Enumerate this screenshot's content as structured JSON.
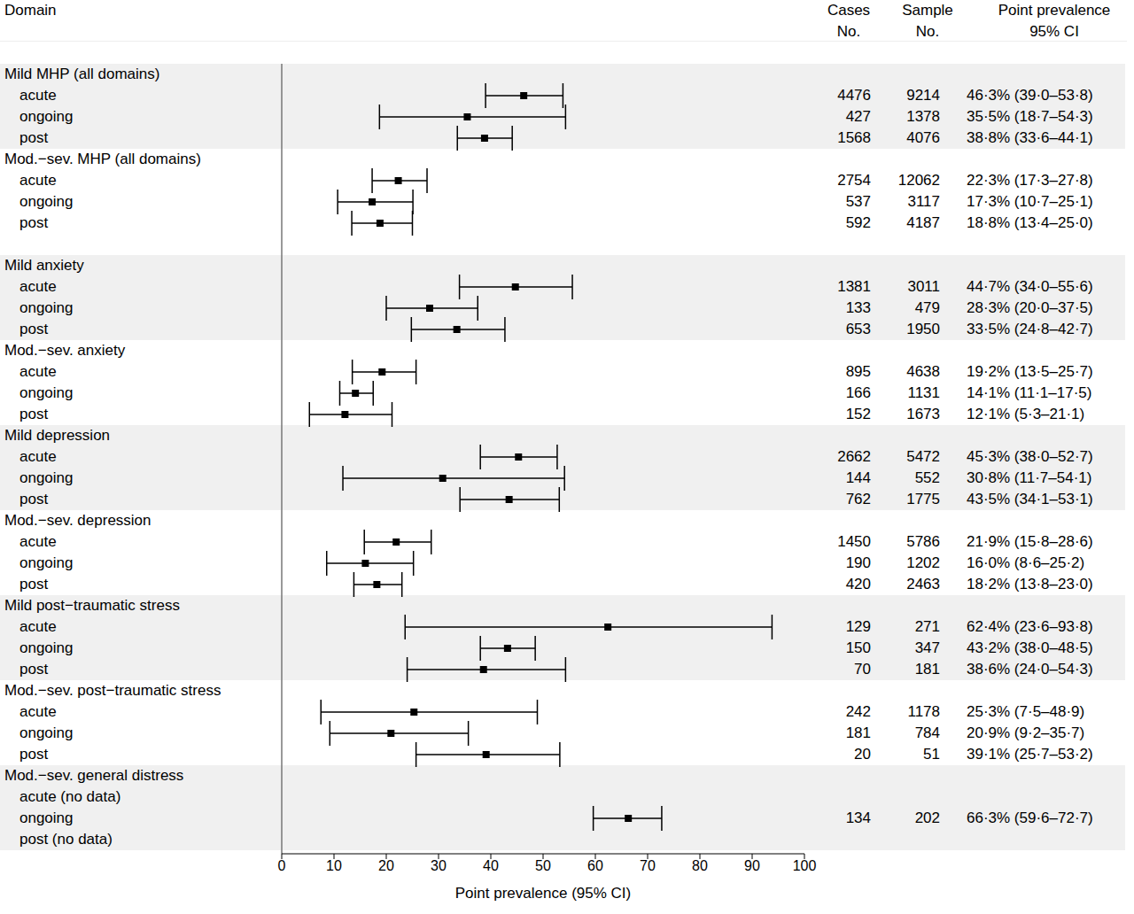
{
  "chart_data": {
    "type": "forest",
    "color": "#000000",
    "marker": "square",
    "headers": {
      "domain": "Domain",
      "cases": [
        "Cases",
        "No."
      ],
      "sample": [
        "Sample",
        "No."
      ],
      "estimate": [
        "Point prevalence",
        "95% CI"
      ]
    },
    "x_label": "Point prevalence (95% CI)",
    "xlim": [
      0,
      100
    ],
    "xticks": [
      0,
      10,
      20,
      30,
      40,
      50,
      60,
      70,
      80,
      90,
      100
    ],
    "groups": [
      {
        "name": "Mild MHP (all domains)",
        "rows": [
          {
            "label": "acute",
            "cases": 4476,
            "sample": 9214,
            "value": 46.3,
            "ci_low": 39.0,
            "ci_high": 53.8,
            "value_label": "46·3% (39·0–53·8)"
          },
          {
            "label": "ongoing",
            "cases": 427,
            "sample": 1378,
            "value": 35.5,
            "ci_low": 18.7,
            "ci_high": 54.3,
            "value_label": "35·5% (18·7–54·3)"
          },
          {
            "label": "post",
            "cases": 1568,
            "sample": 4076,
            "value": 38.8,
            "ci_low": 33.6,
            "ci_high": 44.1,
            "value_label": "38·8% (33·6–44·1)"
          }
        ]
      },
      {
        "name": "Mod.−sev. MHP (all domains)",
        "rows": [
          {
            "label": "acute",
            "cases": 2754,
            "sample": 12062,
            "value": 22.3,
            "ci_low": 17.3,
            "ci_high": 27.8,
            "value_label": "22·3% (17·3–27·8)"
          },
          {
            "label": "ongoing",
            "cases": 537,
            "sample": 3117,
            "value": 17.3,
            "ci_low": 10.7,
            "ci_high": 25.1,
            "value_label": "17·3% (10·7–25·1)"
          },
          {
            "label": "post",
            "cases": 592,
            "sample": 4187,
            "value": 18.8,
            "ci_low": 13.4,
            "ci_high": 25.0,
            "value_label": "18·8% (13·4–25·0)"
          }
        ]
      },
      {
        "name": "Mild anxiety",
        "rows": [
          {
            "label": "acute",
            "cases": 1381,
            "sample": 3011,
            "value": 44.7,
            "ci_low": 34.0,
            "ci_high": 55.6,
            "value_label": "44·7% (34·0–55·6)"
          },
          {
            "label": "ongoing",
            "cases": 133,
            "sample": 479,
            "value": 28.3,
            "ci_low": 20.0,
            "ci_high": 37.5,
            "value_label": "28·3% (20·0–37·5)"
          },
          {
            "label": "post",
            "cases": 653,
            "sample": 1950,
            "value": 33.5,
            "ci_low": 24.8,
            "ci_high": 42.7,
            "value_label": "33·5% (24·8–42·7)"
          }
        ]
      },
      {
        "name": "Mod.−sev. anxiety",
        "rows": [
          {
            "label": "acute",
            "cases": 895,
            "sample": 4638,
            "value": 19.2,
            "ci_low": 13.5,
            "ci_high": 25.7,
            "value_label": "19·2% (13·5–25·7)"
          },
          {
            "label": "ongoing",
            "cases": 166,
            "sample": 1131,
            "value": 14.1,
            "ci_low": 11.1,
            "ci_high": 17.5,
            "value_label": "14·1% (11·1–17·5)"
          },
          {
            "label": "post",
            "cases": 152,
            "sample": 1673,
            "value": 12.1,
            "ci_low": 5.3,
            "ci_high": 21.1,
            "value_label": "12·1% (5·3–21·1)"
          }
        ]
      },
      {
        "name": "Mild depression",
        "rows": [
          {
            "label": "acute",
            "cases": 2662,
            "sample": 5472,
            "value": 45.3,
            "ci_low": 38.0,
            "ci_high": 52.7,
            "value_label": "45·3% (38·0–52·7)"
          },
          {
            "label": "ongoing",
            "cases": 144,
            "sample": 552,
            "value": 30.8,
            "ci_low": 11.7,
            "ci_high": 54.1,
            "value_label": "30·8% (11·7–54·1)"
          },
          {
            "label": "post",
            "cases": 762,
            "sample": 1775,
            "value": 43.5,
            "ci_low": 34.1,
            "ci_high": 53.1,
            "value_label": "43·5% (34·1–53·1)"
          }
        ]
      },
      {
        "name": "Mod.−sev. depression",
        "rows": [
          {
            "label": "acute",
            "cases": 1450,
            "sample": 5786,
            "value": 21.9,
            "ci_low": 15.8,
            "ci_high": 28.6,
            "value_label": "21·9% (15·8–28·6)"
          },
          {
            "label": "ongoing",
            "cases": 190,
            "sample": 1202,
            "value": 16.0,
            "ci_low": 8.6,
            "ci_high": 25.2,
            "value_label": "16·0% (8·6–25·2)"
          },
          {
            "label": "post",
            "cases": 420,
            "sample": 2463,
            "value": 18.2,
            "ci_low": 13.8,
            "ci_high": 23.0,
            "value_label": "18·2% (13·8–23·0)"
          }
        ]
      },
      {
        "name": "Mild post−traumatic stress",
        "rows": [
          {
            "label": "acute",
            "cases": 129,
            "sample": 271,
            "value": 62.4,
            "ci_low": 23.6,
            "ci_high": 93.8,
            "value_label": "62·4% (23·6–93·8)"
          },
          {
            "label": "ongoing",
            "cases": 150,
            "sample": 347,
            "value": 43.2,
            "ci_low": 38.0,
            "ci_high": 48.5,
            "value_label": "43·2% (38·0–48·5)"
          },
          {
            "label": "post",
            "cases": 70,
            "sample": 181,
            "value": 38.6,
            "ci_low": 24.0,
            "ci_high": 54.3,
            "value_label": "38·6% (24·0–54·3)"
          }
        ]
      },
      {
        "name": "Mod.−sev. post−traumatic stress",
        "rows": [
          {
            "label": "acute",
            "cases": 242,
            "sample": 1178,
            "value": 25.3,
            "ci_low": 7.5,
            "ci_high": 48.9,
            "value_label": "25·3% (7·5–48·9)"
          },
          {
            "label": "ongoing",
            "cases": 181,
            "sample": 784,
            "value": 20.9,
            "ci_low": 9.2,
            "ci_high": 35.7,
            "value_label": "20·9% (9·2–35·7)"
          },
          {
            "label": "post",
            "cases": 20,
            "sample": 51,
            "value": 39.1,
            "ci_low": 25.7,
            "ci_high": 53.2,
            "value_label": "39·1% (25·7–53·2)"
          }
        ]
      },
      {
        "name": "Mod.−sev. general distress",
        "rows": [
          {
            "label": "acute (no data)"
          },
          {
            "label": "ongoing",
            "cases": 134,
            "sample": 202,
            "value": 66.3,
            "ci_low": 59.6,
            "ci_high": 72.7,
            "value_label": "66·3% (59·6–72·7)"
          },
          {
            "label": "post (no data)"
          }
        ]
      }
    ]
  }
}
